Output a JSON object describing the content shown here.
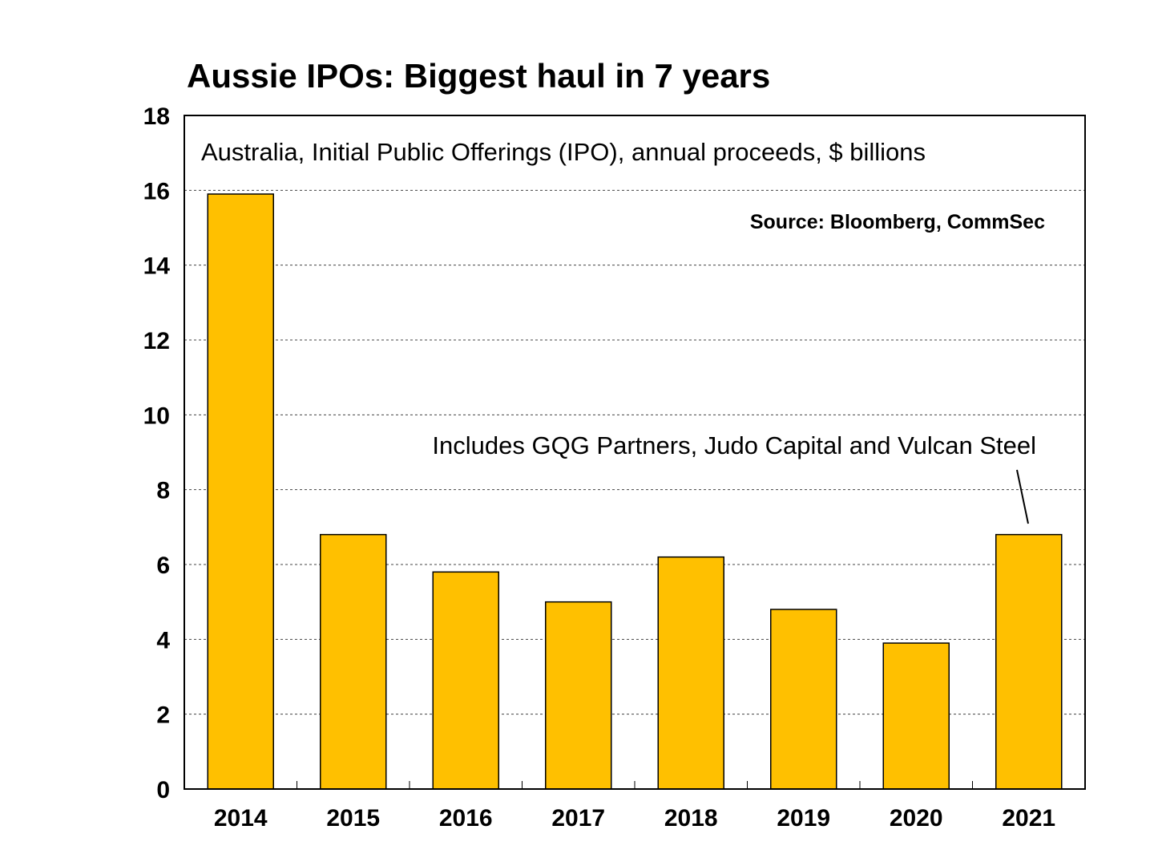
{
  "chart_data": {
    "type": "bar",
    "title": "Aussie IPOs: Biggest haul in 7 years",
    "subtitle": "Australia, Initial Public Offerings (IPO), annual proceeds, $ billions",
    "source": "Source: Bloomberg, CommSec",
    "annotation": "Includes GQG Partners, Judo Capital and Vulcan Steel",
    "annotation_target": "2021",
    "categories": [
      "2014",
      "2015",
      "2016",
      "2017",
      "2018",
      "2019",
      "2020",
      "2021"
    ],
    "values": [
      15.9,
      6.8,
      5.8,
      5.0,
      6.2,
      4.8,
      3.9,
      6.8
    ],
    "xlabel": "",
    "ylabel": "",
    "ylim": [
      0,
      18
    ],
    "yticks": [
      0,
      2,
      4,
      6,
      8,
      10,
      12,
      14,
      16,
      18
    ],
    "grid": true,
    "bar_color": "#FFC000"
  }
}
